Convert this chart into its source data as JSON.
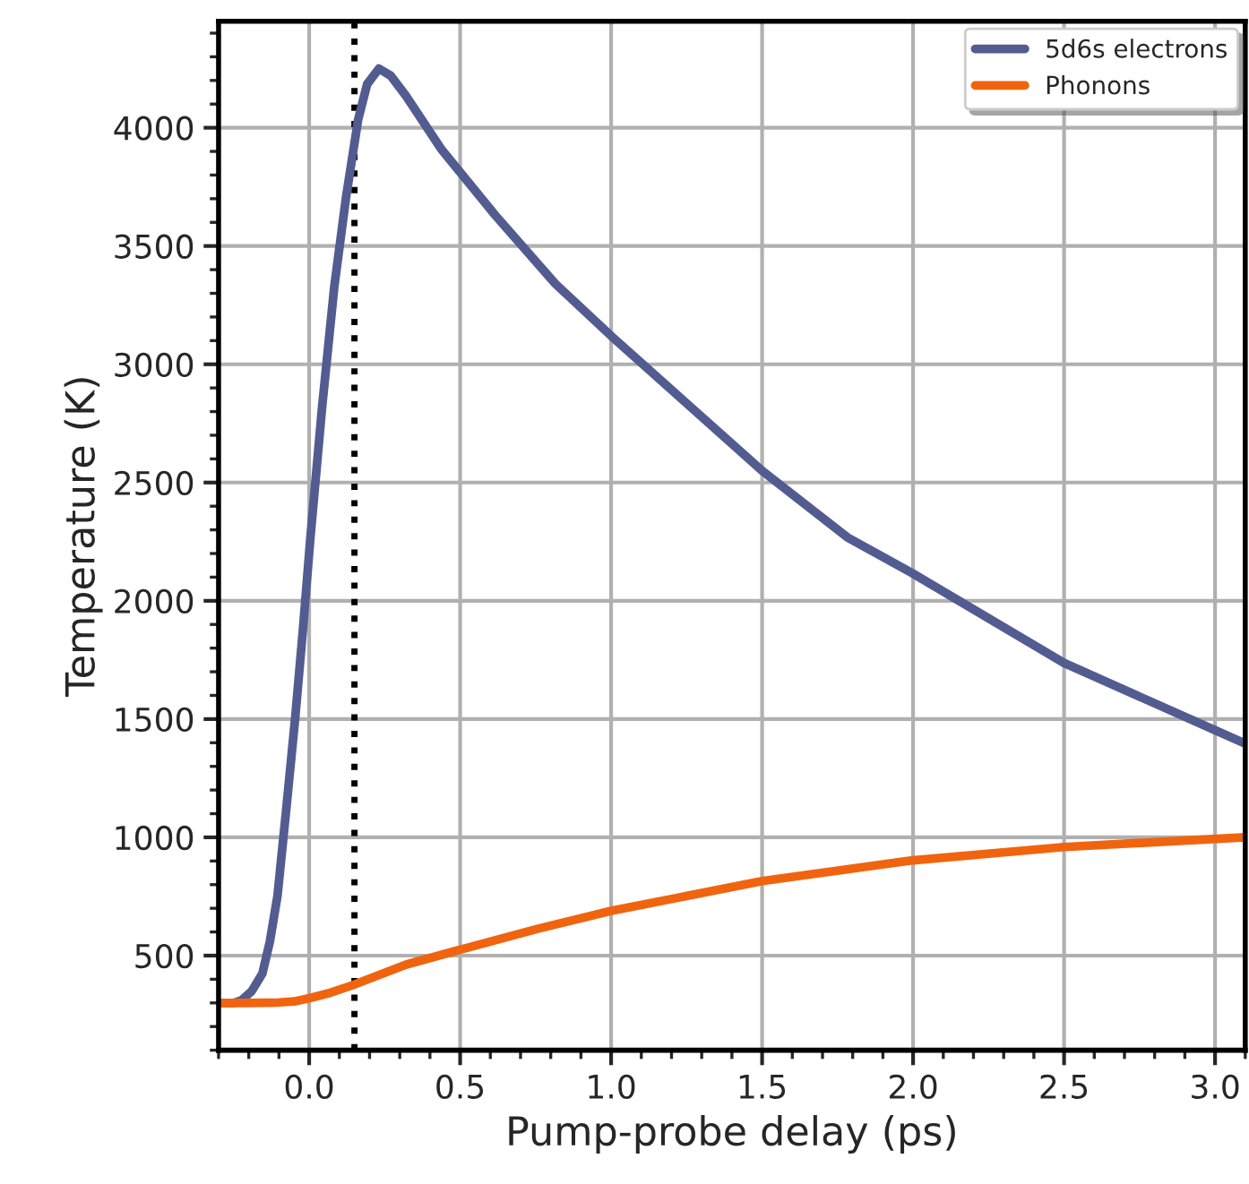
{
  "chart_data": {
    "type": "line",
    "xlabel": "Pump-probe delay (ps)",
    "ylabel": "Temperature (K)",
    "xlim": [
      -0.3,
      3.1
    ],
    "ylim": [
      100,
      4450
    ],
    "xticks": [
      {
        "value": 0,
        "label": "0.0"
      },
      0.5,
      {
        "value": 1,
        "label": "1.0"
      },
      1.5,
      {
        "value": 2,
        "label": "2.0"
      },
      2.5,
      {
        "value": 3,
        "label": "3.0"
      }
    ],
    "yticks": [
      500,
      1000,
      1500,
      2000,
      2500,
      3000,
      3500,
      4000
    ],
    "grid": true,
    "legend": "top right",
    "line_style": "solid",
    "marker": "none",
    "ref_lines": [
      {
        "axis": "x",
        "value": 0.15,
        "color": "#000000",
        "line_style": "dotted"
      }
    ],
    "series": [
      {
        "name": "5d6s electrons",
        "color": "#535c91",
        "x": [
          -0.3,
          -0.25,
          -0.224,
          -0.19,
          -0.155,
          -0.13,
          -0.105,
          -0.075,
          -0.046,
          -0.02,
          0.004,
          0.043,
          0.083,
          0.122,
          0.162,
          0.192,
          0.231,
          0.27,
          0.321,
          0.439,
          0.617,
          0.815,
          1.0,
          1.5,
          1.785,
          2.0,
          2.5,
          3.1
        ],
        "values": [
          300,
          300,
          311,
          350,
          424,
          560,
          752,
          1130,
          1509,
          1888,
          2266,
          2821,
          3326,
          3705,
          4033,
          4184,
          4250,
          4220,
          4134,
          3907,
          3629,
          3341,
          3120,
          2550,
          2266,
          2115,
          1737,
          1396
        ]
      },
      {
        "name": "Phonons",
        "color": "#f0640f",
        "x": [
          -0.3,
          -0.2,
          -0.1,
          -0.05,
          0.004,
          0.07,
          0.142,
          0.321,
          0.5,
          0.756,
          1.0,
          1.5,
          2.0,
          2.5,
          3.1
        ],
        "values": [
          300,
          300,
          302,
          306,
          321,
          343,
          374,
          462,
          525,
          613,
          689,
          815,
          903,
          959,
          1000
        ]
      }
    ]
  }
}
